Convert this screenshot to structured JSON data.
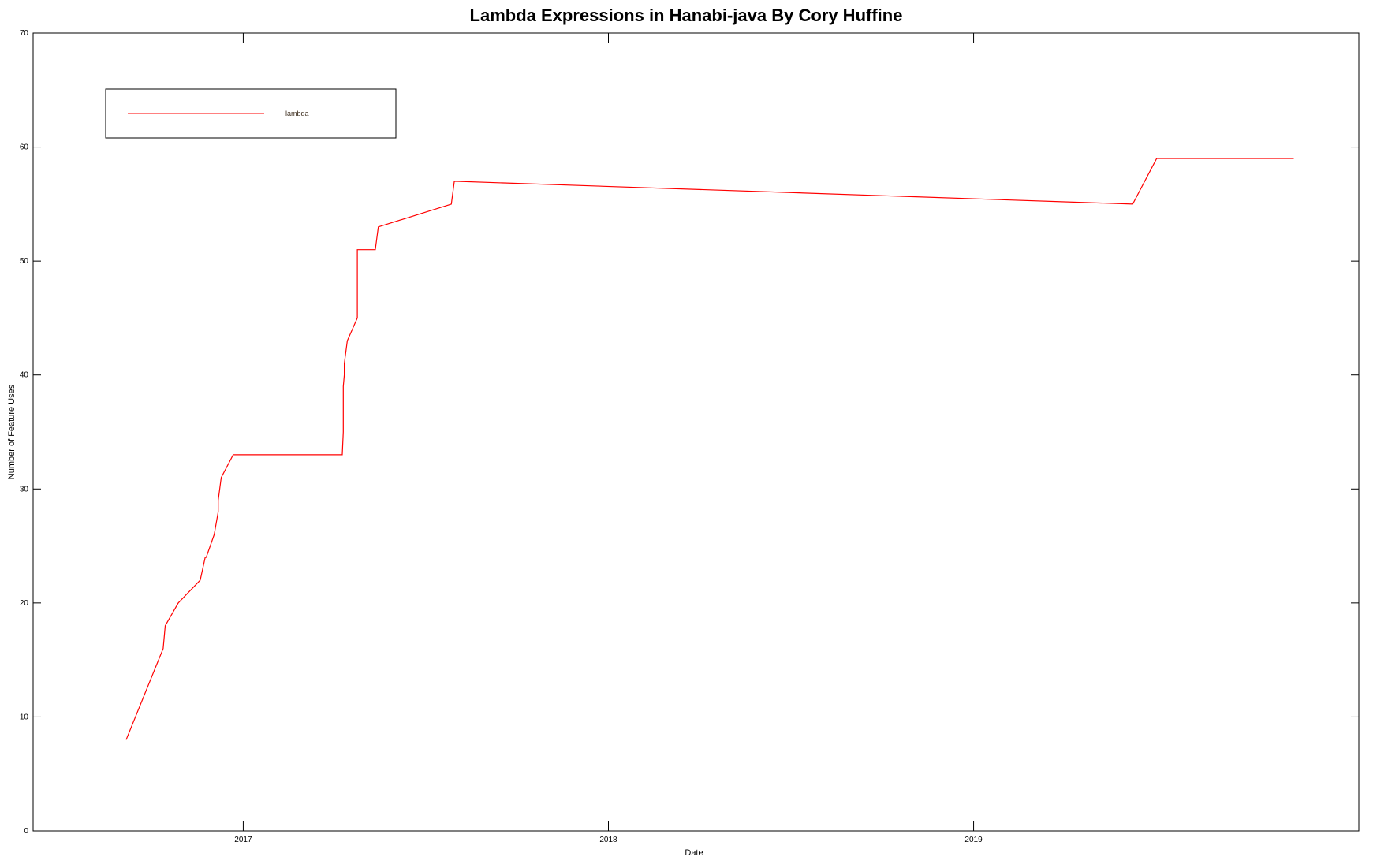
{
  "chart_data": {
    "type": "line",
    "title": "Lambda Expressions in Hanabi-java By Cory Huffine",
    "xlabel": "Date",
    "ylabel": "Number of Feature Uses",
    "ylim": [
      0,
      70
    ],
    "xlim": [
      "2016-06-05",
      "2020-01-21"
    ],
    "y_ticks": [
      "0",
      "10",
      "20",
      "30",
      "40",
      "50",
      "60",
      "70"
    ],
    "x_ticks": [
      {
        "date": "2017-01-01",
        "label": "2017"
      },
      {
        "date": "2018-01-01",
        "label": "2018"
      },
      {
        "date": "2019-01-01",
        "label": "2019"
      }
    ],
    "grid": false,
    "legend_position": "top-left",
    "series": [
      {
        "name": "lambda",
        "color": "#ff0000",
        "x": [
          "2016-09-06",
          "2016-10-13",
          "2016-10-15",
          "2016-10-28",
          "2016-11-19",
          "2016-11-24",
          "2016-11-25",
          "2016-12-03",
          "2016-12-07",
          "2016-12-07",
          "2016-12-10",
          "2016-12-22",
          "2017-04-10",
          "2017-04-11",
          "2017-04-11",
          "2017-04-11",
          "2017-04-12",
          "2017-04-12",
          "2017-04-15",
          "2017-04-25",
          "2017-04-25",
          "2017-05-13",
          "2017-05-16",
          "2017-07-28",
          "2017-07-31",
          "2019-06-09",
          "2019-07-03",
          "2019-11-17"
        ],
        "y": [
          8,
          16,
          18,
          20,
          22,
          24,
          24,
          26,
          28,
          29,
          31,
          33,
          33,
          35,
          37,
          39,
          40,
          41,
          43,
          45,
          51,
          51,
          53,
          55,
          57,
          55,
          59,
          59
        ]
      }
    ]
  }
}
